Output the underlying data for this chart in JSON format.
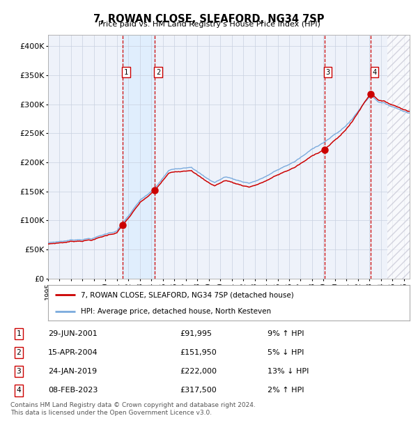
{
  "title": "7, ROWAN CLOSE, SLEAFORD, NG34 7SP",
  "subtitle": "Price paid vs. HM Land Registry's House Price Index (HPI)",
  "xlim_start": 1995.0,
  "xlim_end": 2026.5,
  "ylim": [
    0,
    420000
  ],
  "yticks": [
    0,
    50000,
    100000,
    150000,
    200000,
    250000,
    300000,
    350000,
    400000
  ],
  "ytick_labels": [
    "£0",
    "£50K",
    "£100K",
    "£150K",
    "£200K",
    "£250K",
    "£300K",
    "£350K",
    "£400K"
  ],
  "xticks": [
    1995,
    1996,
    1997,
    1998,
    1999,
    2000,
    2001,
    2002,
    2003,
    2004,
    2005,
    2006,
    2007,
    2008,
    2009,
    2010,
    2011,
    2012,
    2013,
    2014,
    2015,
    2016,
    2017,
    2018,
    2019,
    2020,
    2021,
    2022,
    2023,
    2024,
    2025,
    2026
  ],
  "sale_dates": [
    2001.49,
    2004.29,
    2019.07,
    2023.11
  ],
  "sale_prices": [
    91995,
    151950,
    222000,
    317500
  ],
  "sale_labels": [
    "1",
    "2",
    "3",
    "4"
  ],
  "hpi_line_color": "#7aaadd",
  "price_line_color": "#cc0000",
  "dot_color": "#cc0000",
  "vline_color": "#cc0000",
  "shade_color": "#ddeeff",
  "legend_label_red": "7, ROWAN CLOSE, SLEAFORD, NG34 7SP (detached house)",
  "legend_label_blue": "HPI: Average price, detached house, North Kesteven",
  "table_entries": [
    {
      "num": "1",
      "date": "29-JUN-2001",
      "price": "£91,995",
      "pct": "9% ↑ HPI"
    },
    {
      "num": "2",
      "date": "15-APR-2004",
      "price": "£151,950",
      "pct": "5% ↓ HPI"
    },
    {
      "num": "3",
      "date": "24-JAN-2019",
      "price": "£222,000",
      "pct": "13% ↓ HPI"
    },
    {
      "num": "4",
      "date": "08-FEB-2023",
      "price": "£317,500",
      "pct": "2% ↑ HPI"
    }
  ],
  "footnote": "Contains HM Land Registry data © Crown copyright and database right 2024.\nThis data is licensed under the Open Government Licence v3.0.",
  "background_color": "#ffffff",
  "plot_bg_color": "#eef2fa"
}
